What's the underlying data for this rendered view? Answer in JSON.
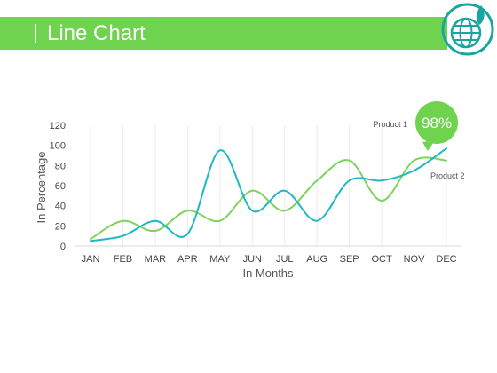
{
  "header": {
    "title": "Line Chart"
  },
  "callout": {
    "value": "98%",
    "color": "#6fd34f"
  },
  "colors": {
    "accent": "#6fd34f",
    "product1": "#1fb8c2",
    "product2": "#7dd35b",
    "logo": "#1aa6a0"
  },
  "chart_data": {
    "type": "line",
    "categories": [
      "JAN",
      "FEB",
      "MAR",
      "APR",
      "MAY",
      "JUN",
      "JUL",
      "AUG",
      "SEP",
      "OCT",
      "NOV",
      "DEC"
    ],
    "yticks": [
      0,
      20,
      40,
      60,
      80,
      100,
      120
    ],
    "ylim": [
      0,
      120
    ],
    "xlabel": "In Months",
    "ylabel": "In Percentage",
    "grid": "vertical",
    "series": [
      {
        "name": "Product 1",
        "color": "#1fb8c2",
        "values": [
          5,
          10,
          25,
          12,
          95,
          35,
          55,
          25,
          65,
          65,
          75,
          97
        ]
      },
      {
        "name": "Product 2",
        "color": "#7dd35b",
        "values": [
          7,
          25,
          15,
          35,
          25,
          55,
          35,
          65,
          85,
          45,
          85,
          85
        ]
      }
    ]
  }
}
